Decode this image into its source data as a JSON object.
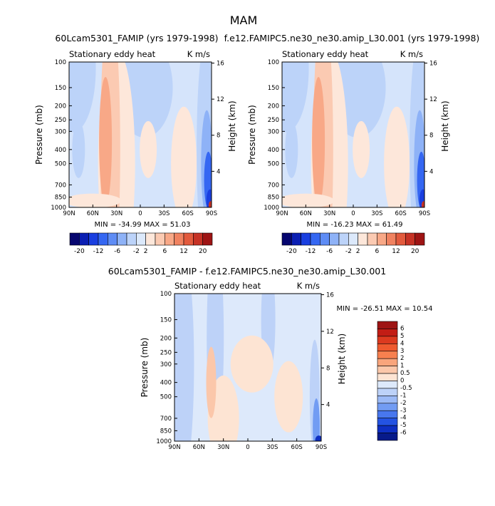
{
  "page_title": "MAM",
  "chart_data": [
    {
      "type": "heatmap",
      "title": "60Lcam5301_FAMIP (yrs 1979-1998)",
      "left_string": "Stationary eddy heat",
      "right_string": "K m/s",
      "ylabel": "Pressure (mb)",
      "y2label": "Height (km)",
      "x_ticks": [
        "90N",
        "60N",
        "30N",
        "0",
        "30S",
        "60S",
        "90S"
      ],
      "y_ticks": [
        "100",
        "150",
        "200",
        "250",
        "300",
        "400",
        "500",
        "700",
        "850",
        "1000"
      ],
      "y2_ticks": [
        "16",
        "12",
        "8",
        "4"
      ],
      "stats": "MIN = -34.99   MAX =  51.03",
      "colorbar_labels": [
        "-20",
        "-12",
        "-6",
        "-2",
        "2",
        "6",
        "12",
        "20"
      ],
      "colorbar_colors": [
        "#06066f",
        "#0b1fb3",
        "#1a3fe0",
        "#3567f2",
        "#5e8cf5",
        "#8eb2f7",
        "#bcd3f9",
        "#dce9fb",
        "#fde7da",
        "#fbcab2",
        "#f8a887",
        "#f08260",
        "#e25a3d",
        "#c63225",
        "#9e1414"
      ]
    },
    {
      "type": "heatmap",
      "title": "f.e12.FAMIPC5.ne30_ne30.amip_L30.001 (yrs 1979-1998)",
      "left_string": "Stationary eddy heat",
      "right_string": "K m/s",
      "ylabel": "Pressure (mb)",
      "y2label": "Height (km)",
      "x_ticks": [
        "90N",
        "60N",
        "30N",
        "0",
        "30S",
        "60S",
        "90S"
      ],
      "y_ticks": [
        "100",
        "150",
        "200",
        "250",
        "300",
        "400",
        "500",
        "700",
        "850",
        "1000"
      ],
      "y2_ticks": [
        "16",
        "12",
        "8",
        "4"
      ],
      "stats": "MIN = -16.23   MAX =  61.49",
      "colorbar_labels": [
        "-20",
        "-12",
        "-6",
        "-2",
        "2",
        "6",
        "12",
        "20"
      ],
      "colorbar_colors": [
        "#06066f",
        "#0b1fb3",
        "#1a3fe0",
        "#3567f2",
        "#5e8cf5",
        "#8eb2f7",
        "#bcd3f9",
        "#dce9fb",
        "#fde7da",
        "#fbcab2",
        "#f8a887",
        "#f08260",
        "#e25a3d",
        "#c63225",
        "#9e1414"
      ]
    },
    {
      "type": "heatmap",
      "title": "60Lcam5301_FAMIP - f.e12.FAMIPC5.ne30_ne30.amip_L30.001",
      "left_string": "Stationary eddy heat",
      "right_string": "K m/s",
      "ylabel": "Pressure (mb)",
      "y2label": "Height (km)",
      "x_ticks": [
        "90N",
        "60N",
        "30N",
        "0",
        "30S",
        "60S",
        "90S"
      ],
      "y_ticks": [
        "100",
        "150",
        "200",
        "250",
        "300",
        "400",
        "500",
        "700",
        "850",
        "1000"
      ],
      "y2_ticks": [
        "16",
        "12",
        "8",
        "4"
      ],
      "stats": "MIN = -26.51   MAX =  10.54",
      "colorbar_labels": [
        "6",
        "5",
        "4",
        "3",
        "2",
        "1",
        "0.5",
        "0",
        "-0.5",
        "-1",
        "-2",
        "-3",
        "-4",
        "-5",
        "-6"
      ],
      "colorbar_colors": [
        "#9e1414",
        "#c21d15",
        "#dc3a1f",
        "#ef5a2f",
        "#f7804f",
        "#f9a57c",
        "#fbc7aa",
        "#fde4d3",
        "#dde9fb",
        "#bdd2f8",
        "#9cbaf6",
        "#729cf3",
        "#4877ee",
        "#2453e2",
        "#0e2fc2",
        "#071a8a"
      ]
    }
  ]
}
